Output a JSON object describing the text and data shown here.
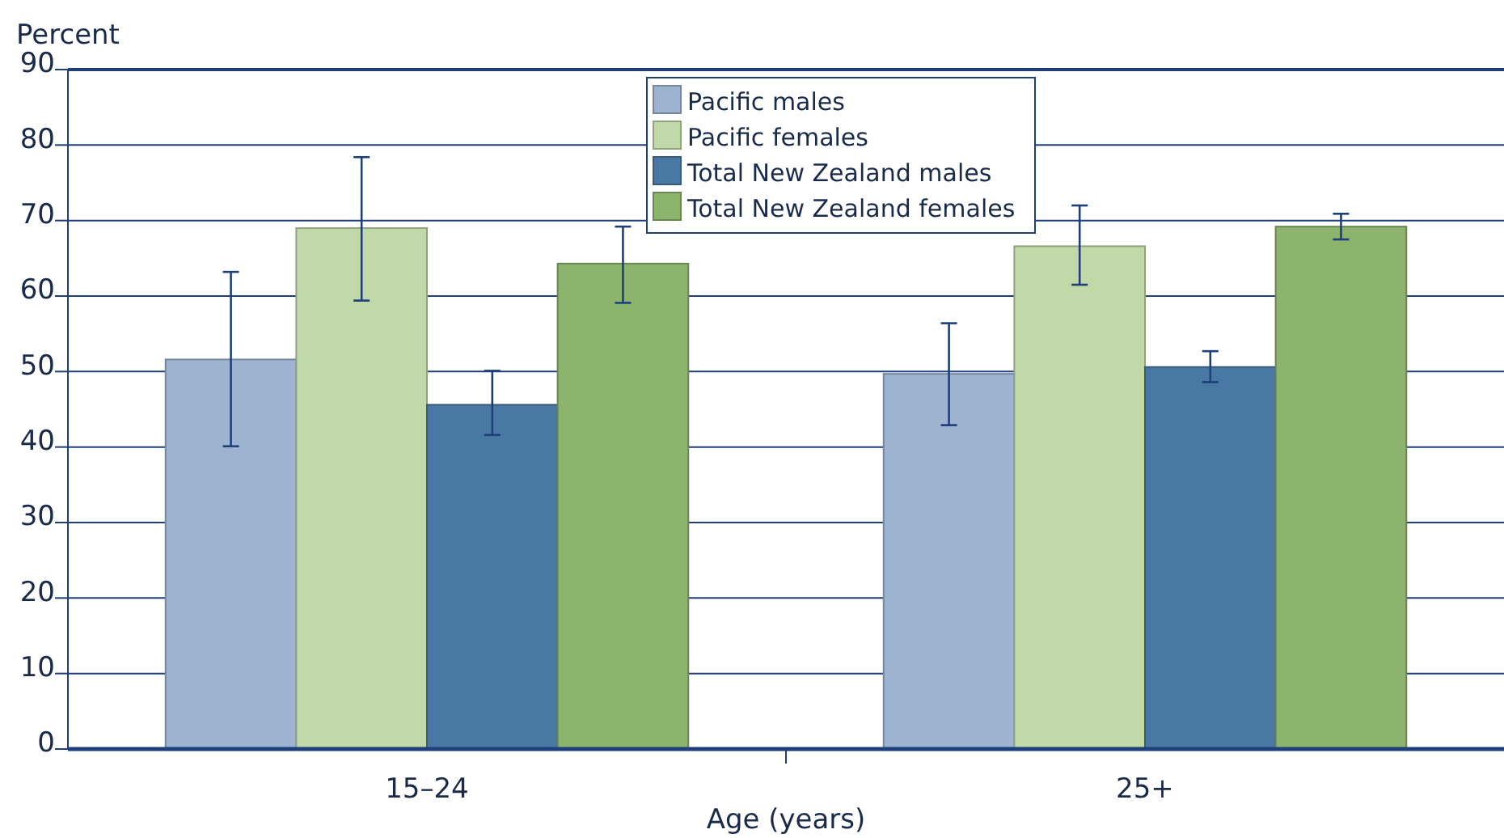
{
  "chart_data": {
    "type": "bar",
    "categories": [
      "15–24",
      "25+"
    ],
    "xlabel": "Age (years)",
    "ylabel": "Percent",
    "ylim": [
      0,
      90
    ],
    "yticks": [
      0,
      10,
      20,
      30,
      40,
      50,
      60,
      70,
      80,
      90
    ],
    "grid": "y",
    "legend": "top",
    "series": [
      {
        "name": "Pacific males",
        "color": "#9db3cf",
        "values": [
          51.6,
          49.7
        ],
        "errors": [
          [
            40.1,
            63.2
          ],
          [
            42.9,
            56.4
          ]
        ]
      },
      {
        "name": "Pacific females",
        "color": "#c1d8a9",
        "values": [
          69.0,
          66.6
        ],
        "errors": [
          [
            59.4,
            78.4
          ],
          [
            61.5,
            72.0
          ]
        ]
      },
      {
        "name": "Total New Zealand males",
        "color": "#4a78a4",
        "values": [
          45.6,
          50.6
        ],
        "errors": [
          [
            41.6,
            50.1
          ],
          [
            48.6,
            52.7
          ]
        ]
      },
      {
        "name": "Total New Zealand females",
        "color": "#8db46c",
        "values": [
          64.3,
          69.2
        ],
        "errors": [
          [
            59.1,
            69.2
          ],
          [
            67.5,
            70.9
          ]
        ]
      }
    ]
  }
}
